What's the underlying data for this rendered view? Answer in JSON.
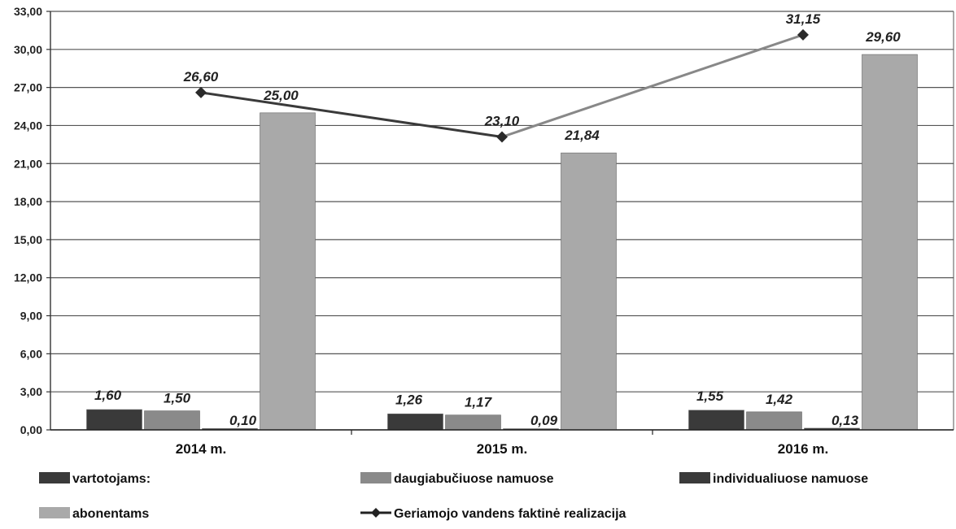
{
  "chart_data": {
    "type": "bar",
    "categories": [
      "2014 m.",
      "2015 m.",
      "2016 m."
    ],
    "ylim": [
      0,
      33
    ],
    "yticks": [
      "0,00",
      "3,00",
      "6,00",
      "9,00",
      "12,00",
      "15,00",
      "18,00",
      "21,00",
      "24,00",
      "27,00",
      "30,00",
      "33,00"
    ],
    "grid": true,
    "legend_position": "bottom",
    "series": [
      {
        "name": "vartotojams:",
        "kind": "bar",
        "color": "#3a3a3a",
        "values": [
          1.6,
          1.26,
          1.55
        ],
        "labels": [
          "1,60",
          "1,26",
          "1,55"
        ]
      },
      {
        "name": "daugiabučiuose namuose",
        "kind": "bar",
        "color": "#8a8a8a",
        "values": [
          1.5,
          1.17,
          1.42
        ],
        "labels": [
          "1,50",
          "1,17",
          "1,42"
        ]
      },
      {
        "name": "individualiuose namuose",
        "kind": "bar",
        "color": "#3a3a3a",
        "values": [
          0.1,
          0.09,
          0.13
        ],
        "labels": [
          "0,10",
          "0,09",
          "0,13"
        ]
      },
      {
        "name": "abonentams",
        "kind": "bar",
        "color": "#a9a9a9",
        "values": [
          25.0,
          21.84,
          29.6
        ],
        "labels": [
          "25,00",
          "21,84",
          "29,60"
        ]
      },
      {
        "name": "Geriamojo vandens faktinė realizacija",
        "kind": "line",
        "color": "#333333",
        "values": [
          26.6,
          23.1,
          31.15
        ],
        "labels": [
          "26,60",
          "23,10",
          "31,15"
        ]
      }
    ]
  }
}
